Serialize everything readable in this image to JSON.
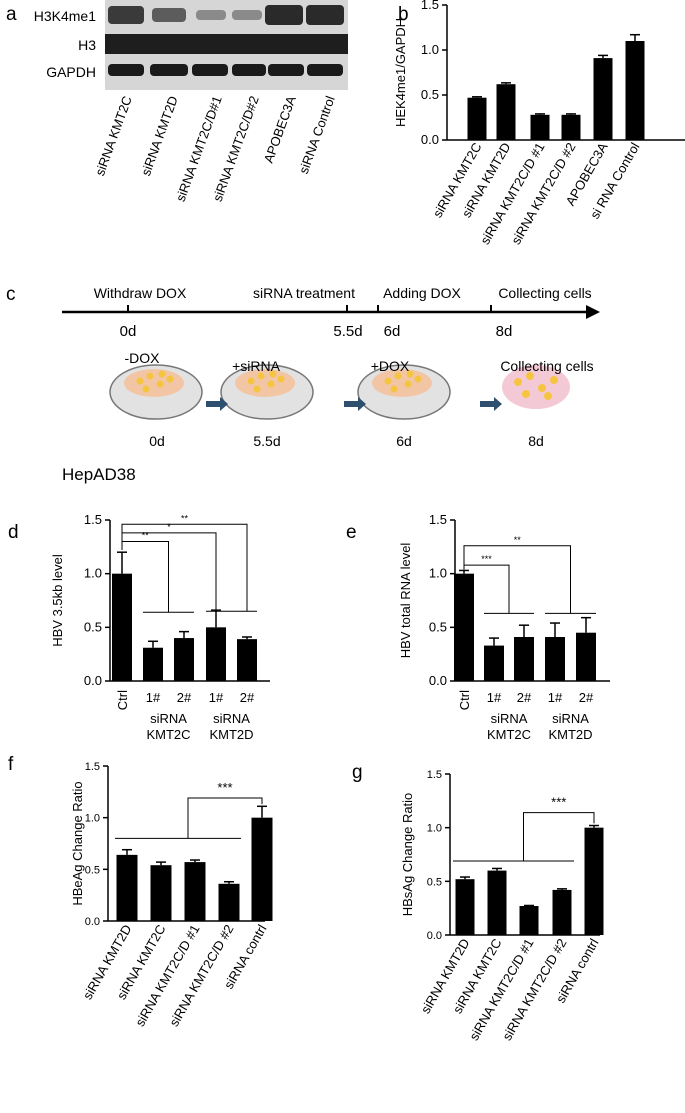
{
  "panel_letters": {
    "a": "a",
    "b": "b",
    "c": "c",
    "d": "d",
    "e": "e",
    "f": "f",
    "g": "g"
  },
  "panel_a": {
    "row_labels": [
      "H3K4me1",
      "H3",
      "GAPDH"
    ],
    "lanes": [
      "siRNA KMT2C",
      "siRNA KMT2D",
      "siRNA KMT2C/D#1",
      "siRNA KMT2C/D#2",
      "APOBEC3A",
      "siRNA Control"
    ]
  },
  "panel_c": {
    "timeline_labels": [
      "Withdraw DOX",
      "siRNA treatment",
      "Adding DOX",
      "Collecting cells"
    ],
    "timeline_days": [
      "0d",
      "5.5d",
      "6d",
      "8d"
    ],
    "step_labels": [
      "-DOX",
      "+siRNA",
      "+DOX",
      "Collecting cells"
    ],
    "step_days": [
      "0d",
      "5.5d",
      "6d",
      "8d"
    ],
    "cell_line": "HepAD38"
  },
  "chart_data": [
    {
      "panel": "b",
      "type": "bar",
      "categories": [
        "siRNA KMT2C",
        "siRNA KMT2D",
        "siRNA KMT2C/D #1",
        "siRNA KMT2C/D #2",
        "APOBEC3A",
        "si RNA Control"
      ],
      "values": [
        0.47,
        0.62,
        0.28,
        0.28,
        0.91,
        1.1
      ],
      "errors": [
        0.01,
        0.015,
        0.01,
        0.01,
        0.03,
        0.07
      ],
      "ylabel": "HEK4me1/GAPDH",
      "ylim": [
        0,
        1.5
      ],
      "yticks": [
        "0.0",
        "0.5",
        "1.0",
        "1.5"
      ],
      "bar_color": "#000000"
    },
    {
      "panel": "d",
      "type": "bar",
      "categories": [
        "Ctrl",
        "1#",
        "2#",
        "1#",
        "2#"
      ],
      "group_labels": [
        "siRNA\nKMT2C",
        "siRNA\nKMT2D"
      ],
      "values": [
        1.0,
        0.31,
        0.4,
        0.5,
        0.39
      ],
      "errors": [
        0.2,
        0.06,
        0.06,
        0.16,
        0.02
      ],
      "ylabel": "HBV 3.5kb level",
      "ylim": [
        0,
        1.5
      ],
      "yticks": [
        "0.0",
        "0.5",
        "1.0",
        "1.5"
      ],
      "significance": [
        "**",
        "*",
        "**"
      ],
      "bar_color": "#000000"
    },
    {
      "panel": "e",
      "type": "bar",
      "categories": [
        "Ctrl",
        "1#",
        "2#",
        "1#",
        "2#"
      ],
      "group_labels": [
        "siRNA\nKMT2C",
        "siRNA\nKMT2D"
      ],
      "values": [
        1.0,
        0.33,
        0.41,
        0.41,
        0.45
      ],
      "errors": [
        0.03,
        0.07,
        0.11,
        0.13,
        0.14
      ],
      "ylabel": "HBV total RNA level",
      "ylim": [
        0,
        1.5
      ],
      "yticks": [
        "0.0",
        "0.5",
        "1.0",
        "1.5"
      ],
      "significance": [
        "***",
        "**"
      ],
      "bar_color": "#000000"
    },
    {
      "panel": "f",
      "type": "bar",
      "categories": [
        "siRNA KMT2D",
        "siRNA KMT2C",
        "siRNA KMT2C/D #1",
        "siRNA KMT2C/D #2",
        "siRNA contrl"
      ],
      "values": [
        0.64,
        0.54,
        0.57,
        0.36,
        1.0
      ],
      "errors": [
        0.05,
        0.03,
        0.02,
        0.02,
        0.11
      ],
      "ylabel": "HBeAg Change Ratio",
      "ylim": [
        0,
        1.5
      ],
      "yticks": [
        "0.0",
        "0.5",
        "1.0",
        "1.5"
      ],
      "significance": [
        "***"
      ],
      "bar_color": "#000000"
    },
    {
      "panel": "g",
      "type": "bar",
      "categories": [
        "siRNA KMT2D",
        "siRNA KMT2C",
        "siRNA KMT2C/D #1",
        "siRNA KMT2C/D #2",
        "siRNA contrl"
      ],
      "values": [
        0.52,
        0.6,
        0.27,
        0.42,
        1.0
      ],
      "errors": [
        0.02,
        0.02,
        0.005,
        0.01,
        0.02
      ],
      "ylabel": "HBsAg Change Ratio",
      "ylim": [
        0,
        1.5
      ],
      "yticks": [
        "0.0",
        "0.5",
        "1.0",
        "1.5"
      ],
      "significance": [
        "***"
      ],
      "bar_color": "#000000"
    }
  ]
}
